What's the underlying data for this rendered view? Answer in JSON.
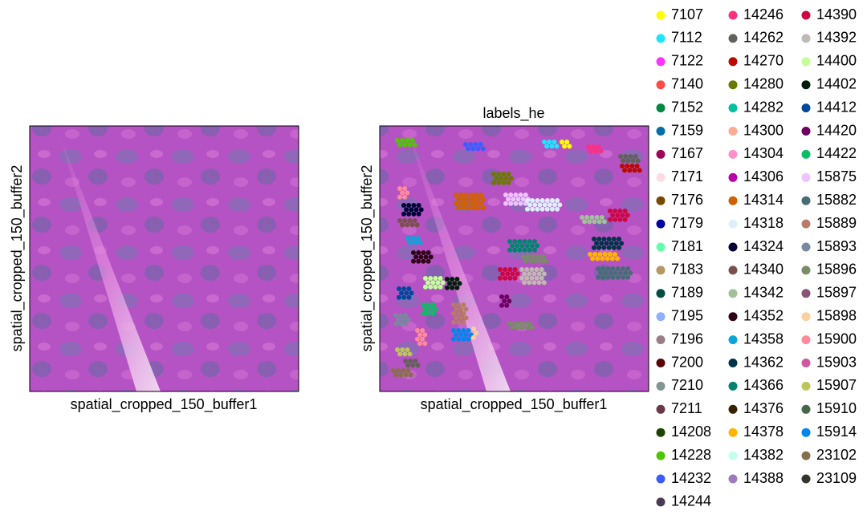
{
  "panels": [
    {
      "xlabel": "spatial_cropped_150_buffer1",
      "ylabel": "spatial_cropped_150_buffer2"
    },
    {
      "title": "labels_he",
      "xlabel": "spatial_cropped_150_buffer1",
      "ylabel": "spatial_cropped_150_buffer2"
    }
  ],
  "legend": [
    [
      {
        "label": "7107",
        "color": "#ffff00"
      },
      {
        "label": "7112",
        "color": "#1ce6ff"
      },
      {
        "label": "7122",
        "color": "#ff34ff"
      },
      {
        "label": "7140",
        "color": "#ff4a46"
      },
      {
        "label": "7152",
        "color": "#008941"
      },
      {
        "label": "7159",
        "color": "#006fa6"
      },
      {
        "label": "7167",
        "color": "#a30059"
      },
      {
        "label": "7171",
        "color": "#ffdbe5"
      },
      {
        "label": "7176",
        "color": "#7a4900"
      },
      {
        "label": "7179",
        "color": "#0000a6"
      },
      {
        "label": "7181",
        "color": "#63ffac"
      },
      {
        "label": "7183",
        "color": "#b79762"
      },
      {
        "label": "7189",
        "color": "#004d43"
      },
      {
        "label": "7195",
        "color": "#8fb0ff"
      },
      {
        "label": "7196",
        "color": "#997d87"
      },
      {
        "label": "7200",
        "color": "#5a0007"
      },
      {
        "label": "7210",
        "color": "#809693"
      },
      {
        "label": "7211",
        "color": "#6a3a4c"
      },
      {
        "label": "14208",
        "color": "#1b4400"
      },
      {
        "label": "14228",
        "color": "#4fc601"
      },
      {
        "label": "14232",
        "color": "#3b5dff"
      },
      {
        "label": "14244",
        "color": "#4a3b53"
      }
    ],
    [
      {
        "label": "14246",
        "color": "#ff2f80"
      },
      {
        "label": "14262",
        "color": "#61615a"
      },
      {
        "label": "14270",
        "color": "#ba0900"
      },
      {
        "label": "14280",
        "color": "#6b7900"
      },
      {
        "label": "14282",
        "color": "#00c2a0"
      },
      {
        "label": "14300",
        "color": "#ffaa92"
      },
      {
        "label": "14304",
        "color": "#ff90c9"
      },
      {
        "label": "14306",
        "color": "#b903aa"
      },
      {
        "label": "14314",
        "color": "#d16100"
      },
      {
        "label": "14318",
        "color": "#ddefff"
      },
      {
        "label": "14324",
        "color": "#000035"
      },
      {
        "label": "14340",
        "color": "#7b4f4b"
      },
      {
        "label": "14342",
        "color": "#a1c299"
      },
      {
        "label": "14352",
        "color": "#300018"
      },
      {
        "label": "14358",
        "color": "#0aa6d8"
      },
      {
        "label": "14362",
        "color": "#013349"
      },
      {
        "label": "14366",
        "color": "#00846f"
      },
      {
        "label": "14376",
        "color": "#372101"
      },
      {
        "label": "14378",
        "color": "#ffb500"
      },
      {
        "label": "14382",
        "color": "#c2ffed"
      },
      {
        "label": "14388",
        "color": "#a079bf"
      }
    ],
    [
      {
        "label": "14390",
        "color": "#cc0744"
      },
      {
        "label": "14392",
        "color": "#c0b9b2"
      },
      {
        "label": "14400",
        "color": "#c2ff99"
      },
      {
        "label": "14402",
        "color": "#001e09"
      },
      {
        "label": "14412",
        "color": "#00489c"
      },
      {
        "label": "14420",
        "color": "#6f0062"
      },
      {
        "label": "14422",
        "color": "#0cbd66"
      },
      {
        "label": "15875",
        "color": "#eec3ff"
      },
      {
        "label": "15882",
        "color": "#456d75"
      },
      {
        "label": "15889",
        "color": "#b77b68"
      },
      {
        "label": "15893",
        "color": "#7a87a1"
      },
      {
        "label": "15896",
        "color": "#788d66"
      },
      {
        "label": "15897",
        "color": "#885578"
      },
      {
        "label": "15898",
        "color": "#fad09f"
      },
      {
        "label": "15900",
        "color": "#ff8a9a"
      },
      {
        "label": "15903",
        "color": "#d157a0"
      },
      {
        "label": "15907",
        "color": "#bec459"
      },
      {
        "label": "15910",
        "color": "#456648"
      },
      {
        "label": "15914",
        "color": "#0086ed"
      },
      {
        "label": "23102",
        "color": "#886f4c"
      },
      {
        "label": "23109",
        "color": "#34362d"
      }
    ]
  ]
}
